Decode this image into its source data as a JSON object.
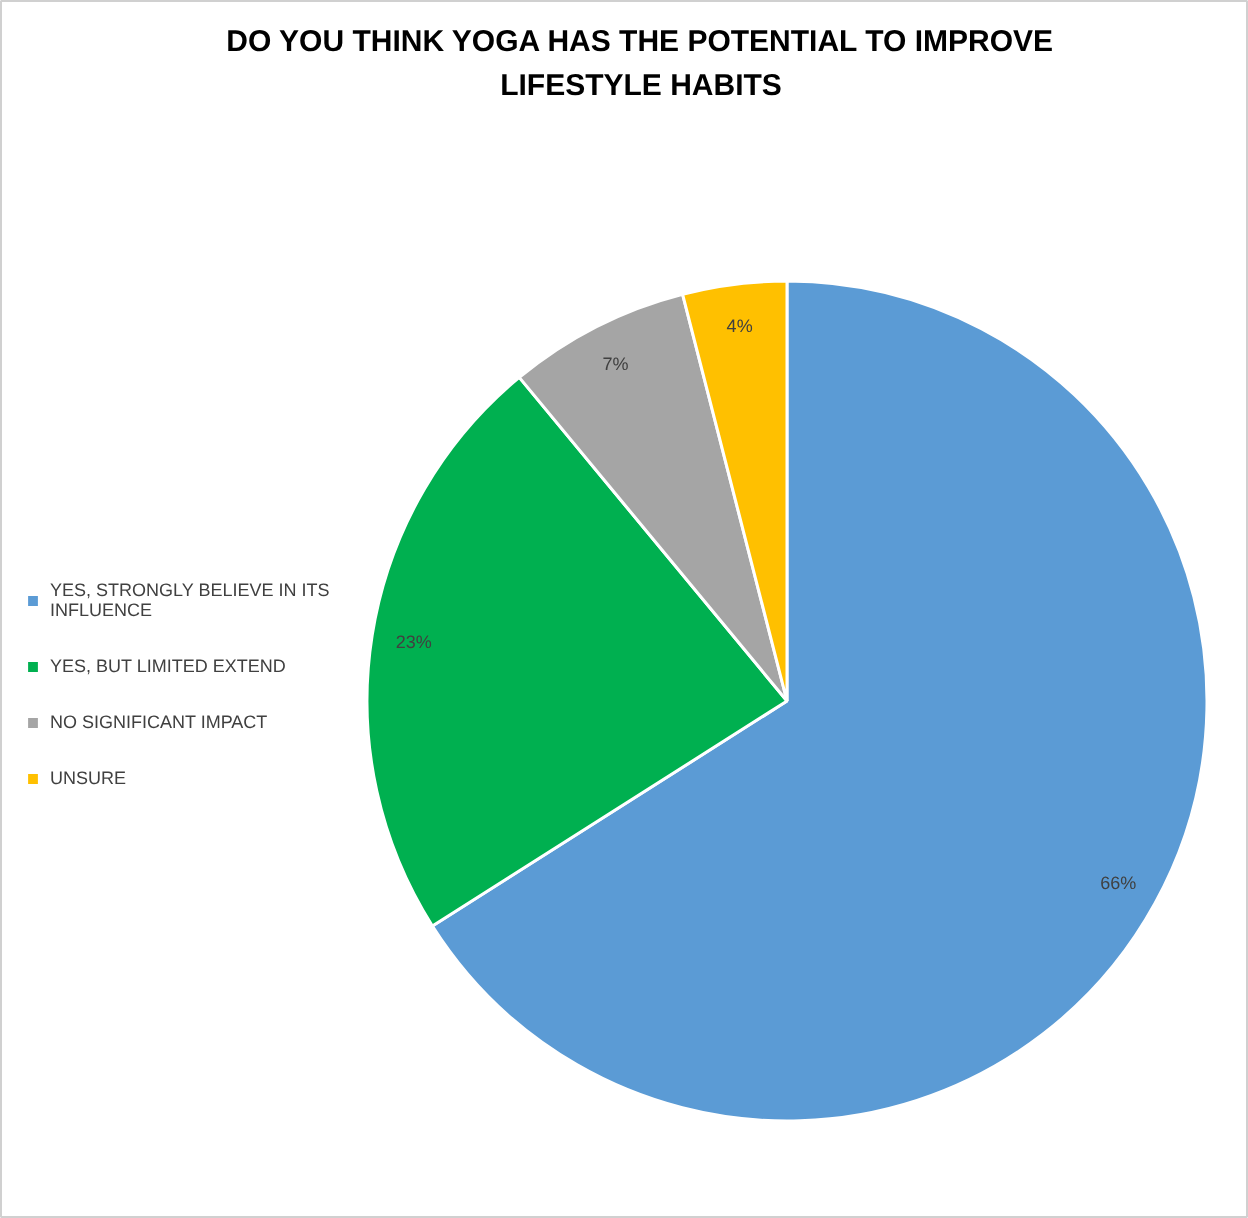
{
  "chart_data": {
    "type": "pie",
    "title": "DO YOU THINK YOGA HAS THE POTENTIAL TO IMPROVE LIFESTYLE HABITS",
    "categories": [
      "YES, STRONGLY BELIEVE IN ITS INFLUENCE",
      "YES, BUT LIMITED EXTEND",
      "NO SIGNIFICANT IMPACT",
      "UNSURE"
    ],
    "values": [
      66,
      23,
      7,
      4
    ],
    "colors": [
      "#5b9bd5",
      "#00b050",
      "#a5a5a5",
      "#ffc000"
    ],
    "value_labels": [
      "66%",
      "23%",
      "7%",
      "4%"
    ],
    "legend": "left"
  }
}
